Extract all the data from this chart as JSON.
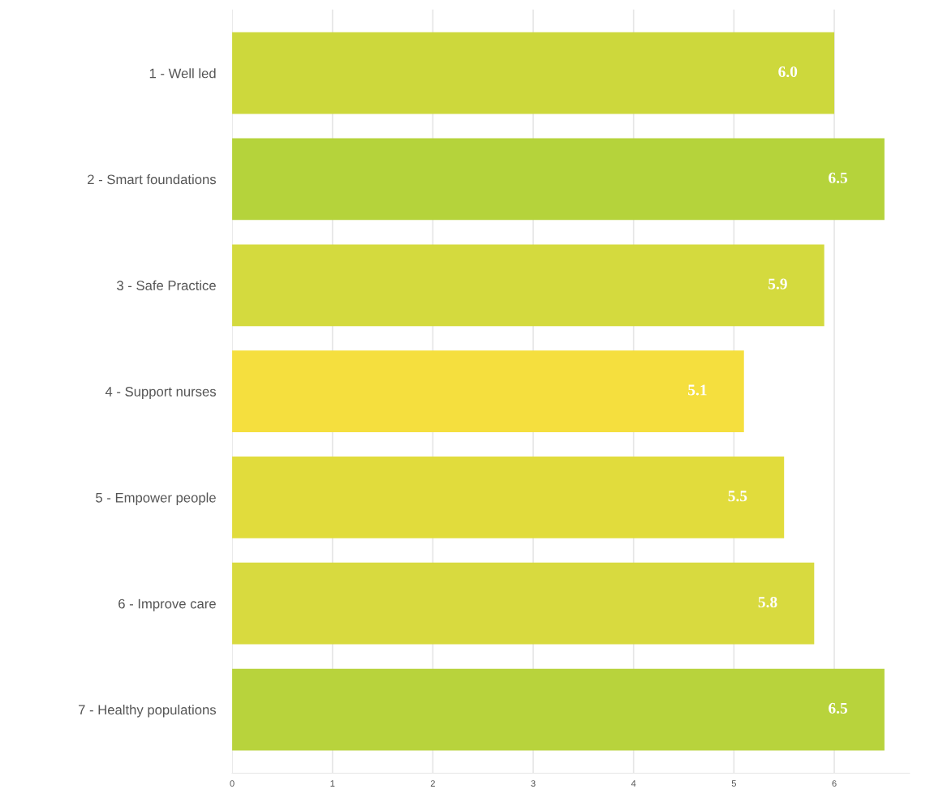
{
  "chart_data": {
    "type": "bar",
    "orientation": "horizontal",
    "categories": [
      "1 - Well led",
      "2 - Smart foundations",
      "3 - Safe Practice",
      "4 - Support nurses",
      "5 - Empower people",
      "6 - Improve care",
      "7 - Healthy populations"
    ],
    "values": [
      6.0,
      6.5,
      5.9,
      5.1,
      5.5,
      5.8,
      6.5
    ],
    "colors": [
      "#cdd83c",
      "#b5d33b",
      "#d4da3e",
      "#f5df3e",
      "#e1dc3c",
      "#d8da3f",
      "#b8d33c"
    ],
    "value_labels": [
      "6.0",
      "6.5",
      "5.9",
      "5.1",
      "5.5",
      "5.8",
      "6.5"
    ],
    "xlim": [
      0,
      6.75
    ],
    "xticks": [
      0,
      1,
      2,
      3,
      4,
      5,
      6
    ],
    "grid": "x",
    "legend": false
  }
}
